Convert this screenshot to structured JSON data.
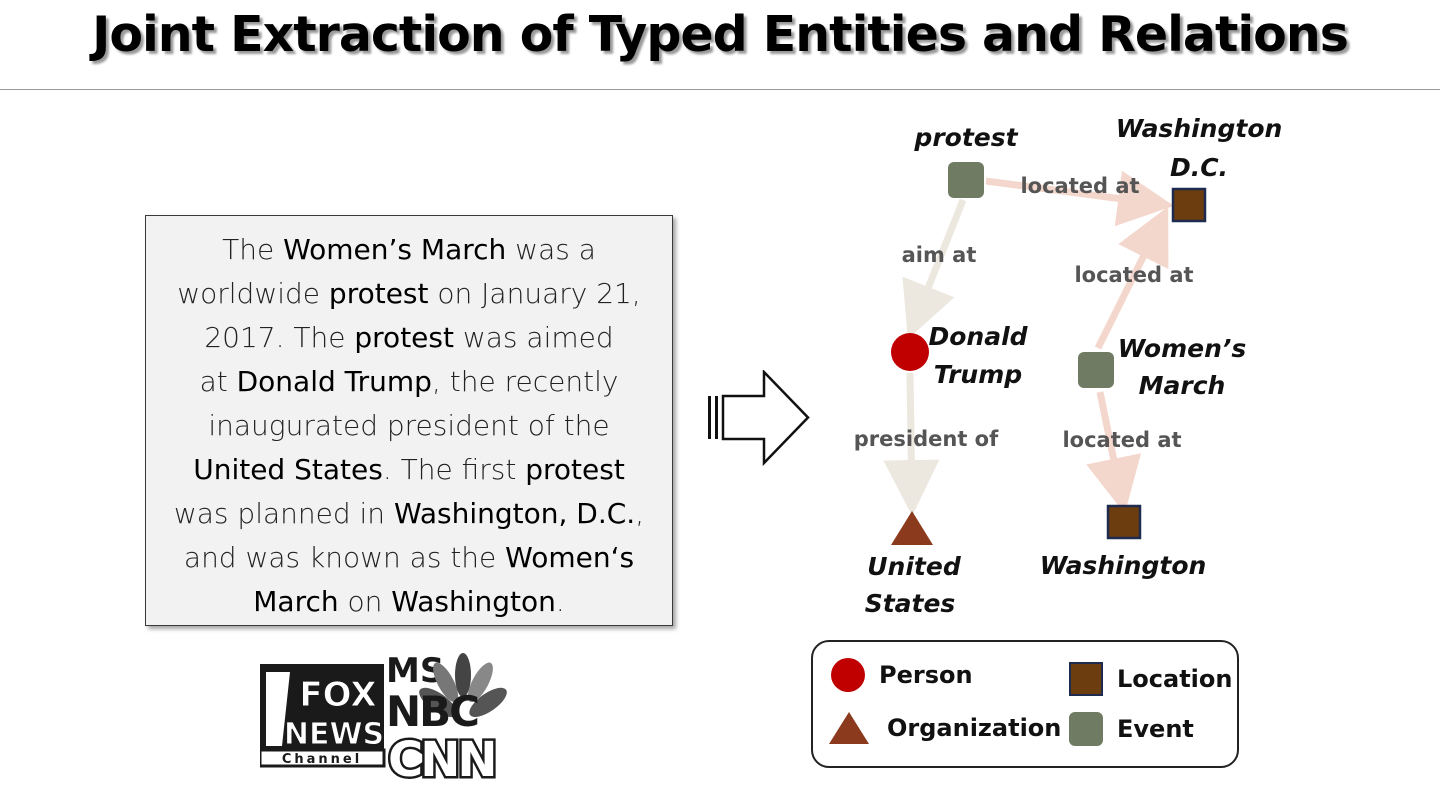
{
  "title": "Joint Extraction of Typed Entities and Relations",
  "passage": [
    [
      {
        "t": "The ",
        "h": false
      },
      {
        "t": "Women’s March",
        "h": true
      },
      {
        "t": " was a",
        "h": false
      }
    ],
    [
      {
        "t": "worldwide ",
        "h": false
      },
      {
        "t": "protest",
        "h": true
      },
      {
        "t": " on January 21,",
        "h": false
      }
    ],
    [
      {
        "t": "2017. The ",
        "h": false
      },
      {
        "t": "protest",
        "h": true
      },
      {
        "t": " was aimed",
        "h": false
      }
    ],
    [
      {
        "t": "at ",
        "h": false
      },
      {
        "t": "Donald Trump",
        "h": true
      },
      {
        "t": ", the recently",
        "h": false
      }
    ],
    [
      {
        "t": "inaugurated president of the",
        "h": false
      }
    ],
    [
      {
        "t": "United States",
        "h": true
      },
      {
        "t": ". The first ",
        "h": false
      },
      {
        "t": "protest",
        "h": true
      }
    ],
    [
      {
        "t": "was planned in ",
        "h": false
      },
      {
        "t": "Washington, D.C.",
        "h": true
      },
      {
        "t": ",",
        "h": false
      }
    ],
    [
      {
        "t": "and was known as the ",
        "h": false
      },
      {
        "t": "Women‘s",
        "h": true
      }
    ],
    [
      {
        "t": "March",
        "h": true
      },
      {
        "t": " on ",
        "h": false
      },
      {
        "t": "Washington",
        "h": true
      },
      {
        "t": ".",
        "h": false
      }
    ]
  ],
  "graph": {
    "nodes": [
      {
        "id": "protest",
        "label": [
          "protest"
        ],
        "type": "Event"
      },
      {
        "id": "dc",
        "label": [
          "Washington",
          "D.C."
        ],
        "type": "Location"
      },
      {
        "id": "trump",
        "label": [
          "Donald",
          "Trump"
        ],
        "type": "Person"
      },
      {
        "id": "wm",
        "label": [
          "Women’s",
          "March"
        ],
        "type": "Event"
      },
      {
        "id": "us",
        "label": [
          "United",
          "States"
        ],
        "type": "Organization"
      },
      {
        "id": "wash",
        "label": [
          "Washington"
        ],
        "type": "Location"
      }
    ],
    "edges": [
      {
        "from": "protest",
        "to": "dc",
        "label": "located at"
      },
      {
        "from": "protest",
        "to": "trump",
        "label": "aim at"
      },
      {
        "from": "wm",
        "to": "dc",
        "label": "located at"
      },
      {
        "from": "trump",
        "to": "us",
        "label": "president of"
      },
      {
        "from": "wm",
        "to": "wash",
        "label": "located at"
      }
    ]
  },
  "legend": {
    "person": "Person",
    "organization": "Organization",
    "location": "Location",
    "event": "Event"
  },
  "logos": {
    "fox_line1": "FOX",
    "fox_line2": "NEWS",
    "fox_line3": "Channel",
    "msnbc_line1": "MS",
    "msnbc_line2": "NBC",
    "cnn": "CNN"
  },
  "colors": {
    "person": "#c00000",
    "organization": "#8b3a1e",
    "location": "#6b3d0f",
    "location_border": "#1f2a4f",
    "event": "#6f7b63",
    "edge_located": "#f4d7cc",
    "edge_gray": "#ece8df"
  }
}
